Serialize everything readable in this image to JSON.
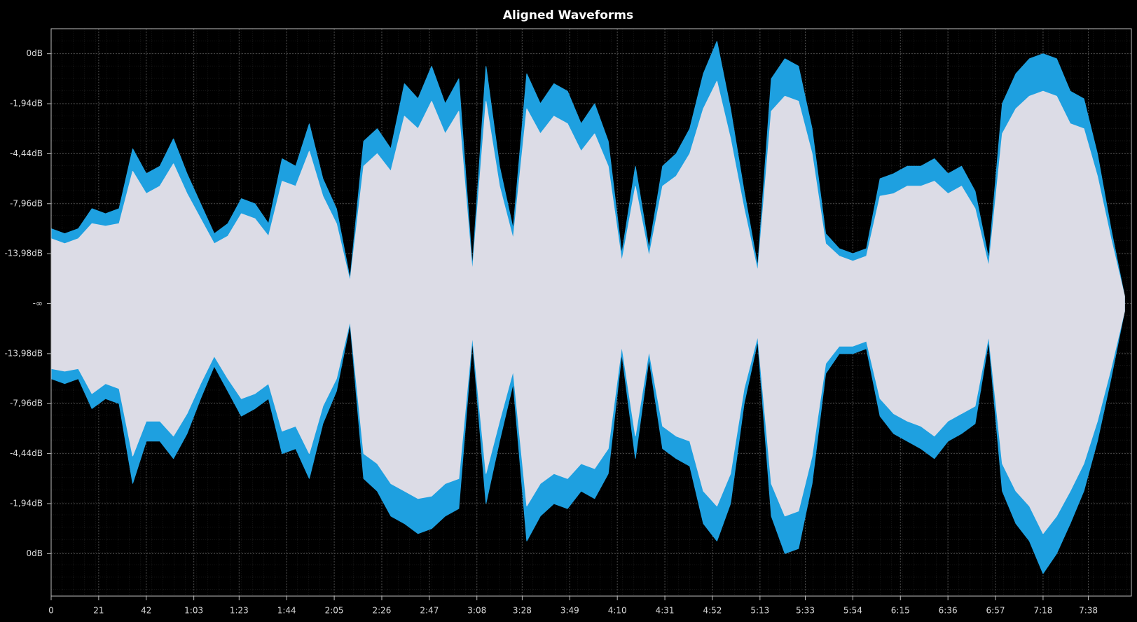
{
  "chart_data": {
    "type": "waveform",
    "title": "Aligned Waveforms",
    "x": [
      0,
      6,
      12,
      18,
      24,
      30,
      36,
      42,
      48,
      54,
      60,
      66,
      72,
      78,
      84,
      90,
      96,
      102,
      108,
      114,
      120,
      126,
      132,
      138,
      144,
      150,
      156,
      162,
      168,
      174,
      180,
      186,
      192,
      198,
      204,
      210,
      216,
      222,
      228,
      234,
      240,
      246,
      252,
      258,
      264,
      270,
      276,
      282,
      288,
      294,
      300,
      306,
      312,
      318,
      324,
      330,
      336,
      342,
      348,
      354,
      360,
      366,
      372,
      378,
      384,
      390,
      396,
      402,
      408,
      414,
      420,
      426,
      432,
      438,
      444,
      450,
      456,
      462,
      468,
      474
    ],
    "series": [
      {
        "color": "#1ea0e0",
        "values": [
          0.3,
          0.28,
          0.3,
          0.38,
          0.36,
          0.38,
          0.62,
          0.52,
          0.55,
          0.66,
          0.52,
          0.4,
          0.28,
          0.32,
          0.42,
          0.4,
          0.32,
          0.58,
          0.55,
          0.72,
          0.5,
          0.38,
          0.1,
          0.65,
          0.7,
          0.62,
          0.88,
          0.82,
          0.95,
          0.8,
          0.9,
          0.15,
          0.95,
          0.55,
          0.3,
          0.92,
          0.8,
          0.88,
          0.85,
          0.72,
          0.8,
          0.65,
          0.2,
          0.55,
          0.22,
          0.55,
          0.6,
          0.7,
          0.92,
          1.05,
          0.78,
          0.45,
          0.15,
          0.9,
          0.98,
          0.95,
          0.7,
          0.28,
          0.22,
          0.2,
          0.22,
          0.5,
          0.52,
          0.55,
          0.55,
          0.58,
          0.52,
          0.55,
          0.45,
          0.18,
          0.8,
          0.92,
          0.98,
          1.0,
          0.98,
          0.85,
          0.82,
          0.6,
          0.3,
          0.03
        ],
        "lows": [
          -0.3,
          -0.32,
          -0.3,
          -0.42,
          -0.38,
          -0.4,
          -0.72,
          -0.55,
          -0.55,
          -0.62,
          -0.52,
          -0.38,
          -0.25,
          -0.35,
          -0.45,
          -0.42,
          -0.38,
          -0.6,
          -0.58,
          -0.7,
          -0.48,
          -0.35,
          -0.08,
          -0.7,
          -0.75,
          -0.85,
          -0.88,
          -0.92,
          -0.9,
          -0.85,
          -0.82,
          -0.15,
          -0.8,
          -0.55,
          -0.32,
          -0.95,
          -0.85,
          -0.8,
          -0.82,
          -0.75,
          -0.78,
          -0.68,
          -0.2,
          -0.62,
          -0.22,
          -0.58,
          -0.62,
          -0.65,
          -0.88,
          -0.95,
          -0.8,
          -0.4,
          -0.15,
          -0.85,
          -1.0,
          -0.98,
          -0.72,
          -0.28,
          -0.2,
          -0.2,
          -0.18,
          -0.45,
          -0.52,
          -0.55,
          -0.58,
          -0.62,
          -0.55,
          -0.52,
          -0.48,
          -0.15,
          -0.75,
          -0.88,
          -0.95,
          -1.08,
          -1.0,
          -0.88,
          -0.75,
          -0.55,
          -0.3,
          -0.03
        ]
      },
      {
        "color": "#dcdce6",
        "values": [
          0.26,
          0.24,
          0.26,
          0.32,
          0.31,
          0.32,
          0.53,
          0.44,
          0.47,
          0.56,
          0.44,
          0.34,
          0.24,
          0.27,
          0.36,
          0.34,
          0.27,
          0.49,
          0.47,
          0.61,
          0.43,
          0.32,
          0.09,
          0.55,
          0.6,
          0.53,
          0.75,
          0.7,
          0.81,
          0.68,
          0.77,
          0.13,
          0.81,
          0.47,
          0.26,
          0.78,
          0.68,
          0.75,
          0.72,
          0.61,
          0.68,
          0.55,
          0.17,
          0.47,
          0.19,
          0.47,
          0.51,
          0.6,
          0.78,
          0.89,
          0.66,
          0.38,
          0.13,
          0.77,
          0.83,
          0.81,
          0.6,
          0.24,
          0.19,
          0.17,
          0.19,
          0.43,
          0.44,
          0.47,
          0.47,
          0.49,
          0.44,
          0.47,
          0.38,
          0.15,
          0.68,
          0.78,
          0.83,
          0.85,
          0.83,
          0.72,
          0.7,
          0.51,
          0.26,
          0.03
        ],
        "lows": [
          -0.26,
          -0.27,
          -0.26,
          -0.36,
          -0.32,
          -0.34,
          -0.61,
          -0.47,
          -0.47,
          -0.53,
          -0.44,
          -0.32,
          -0.21,
          -0.3,
          -0.38,
          -0.36,
          -0.32,
          -0.51,
          -0.49,
          -0.6,
          -0.41,
          -0.3,
          -0.07,
          -0.6,
          -0.64,
          -0.72,
          -0.75,
          -0.78,
          -0.77,
          -0.72,
          -0.7,
          -0.13,
          -0.68,
          -0.47,
          -0.27,
          -0.81,
          -0.72,
          -0.68,
          -0.7,
          -0.64,
          -0.66,
          -0.58,
          -0.17,
          -0.53,
          -0.19,
          -0.49,
          -0.53,
          -0.55,
          -0.75,
          -0.81,
          -0.68,
          -0.34,
          -0.13,
          -0.72,
          -0.85,
          -0.83,
          -0.61,
          -0.24,
          -0.17,
          -0.17,
          -0.15,
          -0.38,
          -0.44,
          -0.47,
          -0.49,
          -0.53,
          -0.47,
          -0.44,
          -0.41,
          -0.13,
          -0.64,
          -0.75,
          -0.81,
          -0.92,
          -0.85,
          -0.75,
          -0.64,
          -0.47,
          -0.26,
          -0.03
        ]
      }
    ],
    "xlim": [
      0,
      477
    ],
    "xticks": [
      0,
      21,
      42,
      {
        "value": 63,
        "label": "1:03"
      },
      {
        "value": 83,
        "label": "1:23"
      },
      {
        "value": 104,
        "label": "1:44"
      },
      {
        "value": 125,
        "label": "2:05"
      },
      {
        "value": 146,
        "label": "2:26"
      },
      {
        "value": 167,
        "label": "2:47"
      },
      {
        "value": 188,
        "label": "3:08"
      },
      {
        "value": 208,
        "label": "3:28"
      },
      {
        "value": 229,
        "label": "3:49"
      },
      {
        "value": 250,
        "label": "4:10"
      },
      {
        "value": 271,
        "label": "4:31"
      },
      {
        "value": 292,
        "label": "4:52"
      },
      {
        "value": 313,
        "label": "5:13"
      },
      {
        "value": 333,
        "label": "5:33"
      },
      {
        "value": 354,
        "label": "5:54"
      },
      {
        "value": 375,
        "label": "6:15"
      },
      {
        "value": 396,
        "label": "6:36"
      },
      {
        "value": 417,
        "label": "6:57"
      },
      {
        "value": 438,
        "label": "7:18"
      },
      {
        "value": 458,
        "label": "7:38"
      }
    ],
    "ylim": [
      -1.17,
      1.1
    ],
    "yticks": [
      {
        "value": -1,
        "label": "0dB"
      },
      {
        "value": -0.8,
        "label": "-1,94dB"
      },
      {
        "value": -0.6,
        "label": "-4,44dB"
      },
      {
        "value": -0.4,
        "label": "-7,96dB"
      },
      {
        "value": -0.2,
        "label": "-13,98dB"
      },
      {
        "value": 0,
        "label": "-∞"
      },
      {
        "value": 0.2,
        "label": "-13,98dB"
      },
      {
        "value": 0.4,
        "label": "-7,96dB"
      },
      {
        "value": 0.6,
        "label": "-4,44dB"
      },
      {
        "value": 0.8,
        "label": "-1,94dB"
      },
      {
        "value": 1,
        "label": "0dB"
      }
    ],
    "grid": true
  }
}
